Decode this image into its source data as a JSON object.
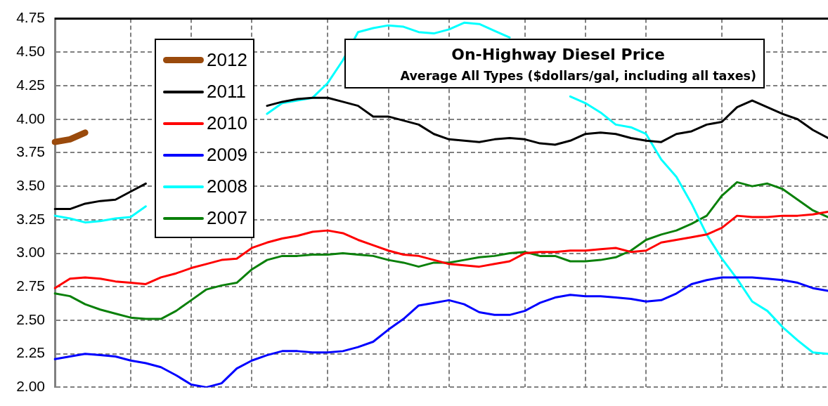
{
  "chart_data": {
    "type": "line",
    "title": "On-Highway Diesel Price",
    "subtitle": "Average All Types ($dollars/gal, including all taxes)",
    "categories": [
      null,
      null,
      null,
      null,
      null,
      null,
      null,
      null,
      null,
      null,
      null,
      null,
      null,
      null,
      null,
      null,
      null,
      null,
      null,
      null,
      null,
      null,
      null,
      null,
      null,
      null,
      null,
      null,
      null,
      null,
      null,
      null,
      null,
      null,
      null,
      null,
      null,
      null,
      null,
      null,
      null,
      null,
      null,
      null,
      null,
      null,
      null,
      null,
      null,
      null,
      null,
      null
    ],
    "series": [
      {
        "name": "2012",
        "color": "#9a4a0c",
        "values": [
          3.83,
          3.85,
          3.9,
          null,
          null,
          null,
          null,
          null,
          null,
          null,
          null,
          null,
          null,
          null,
          null,
          null,
          null,
          null,
          null,
          null,
          null,
          null,
          null,
          null,
          null,
          null,
          null,
          null,
          null,
          null,
          null,
          null,
          null,
          null,
          null,
          null,
          null,
          null,
          null,
          null,
          null,
          null,
          null,
          null,
          null,
          null,
          null,
          null,
          null,
          null,
          null,
          null
        ]
      },
      {
        "name": "2011",
        "color": "#000000",
        "values": [
          3.33,
          3.33,
          3.37,
          3.39,
          3.4,
          3.46,
          3.52,
          null,
          null,
          null,
          null,
          null,
          null,
          null,
          4.1,
          4.13,
          4.15,
          4.16,
          4.16,
          4.13,
          4.1,
          4.02,
          4.02,
          3.99,
          3.96,
          3.89,
          3.85,
          3.84,
          3.83,
          3.85,
          3.86,
          3.85,
          3.82,
          3.81,
          3.84,
          3.89,
          3.9,
          3.89,
          3.86,
          3.84,
          3.83,
          3.89,
          3.91,
          3.96,
          3.98,
          4.09,
          4.14,
          4.09,
          4.04,
          4.0,
          3.92,
          3.86
        ]
      },
      {
        "name": "2010",
        "color": "#ff0000",
        "values": [
          2.74,
          2.81,
          2.82,
          2.81,
          2.79,
          2.78,
          2.77,
          2.82,
          2.85,
          2.89,
          2.92,
          2.95,
          2.96,
          3.04,
          3.08,
          3.11,
          3.13,
          3.16,
          3.17,
          3.15,
          3.1,
          3.06,
          3.02,
          2.99,
          2.98,
          2.95,
          2.92,
          2.91,
          2.9,
          2.92,
          2.94,
          3.0,
          3.01,
          3.01,
          3.02,
          3.02,
          3.03,
          3.04,
          3.01,
          3.02,
          3.08,
          3.1,
          3.12,
          3.14,
          3.19,
          3.28,
          3.27,
          3.27,
          3.28,
          3.28,
          3.29,
          3.31
        ]
      },
      {
        "name": "2009",
        "color": "#0000ff",
        "values": [
          2.21,
          2.23,
          2.25,
          2.24,
          2.23,
          2.2,
          2.18,
          2.15,
          2.09,
          2.02,
          2.0,
          2.03,
          2.14,
          2.2,
          2.24,
          2.27,
          2.27,
          2.26,
          2.26,
          2.27,
          2.3,
          2.34,
          2.43,
          2.51,
          2.61,
          2.63,
          2.65,
          2.62,
          2.56,
          2.54,
          2.54,
          2.57,
          2.63,
          2.67,
          2.69,
          2.68,
          2.68,
          2.67,
          2.66,
          2.64,
          2.65,
          2.7,
          2.77,
          2.8,
          2.82,
          2.82,
          2.82,
          2.81,
          2.8,
          2.78,
          2.74,
          2.72
        ]
      },
      {
        "name": "2008",
        "color": "#00ffff",
        "values": [
          3.28,
          3.26,
          3.23,
          3.24,
          3.26,
          3.27,
          3.35,
          null,
          null,
          null,
          null,
          null,
          null,
          null,
          4.04,
          4.12,
          4.14,
          4.16,
          4.27,
          4.44,
          4.65,
          4.68,
          4.7,
          4.69,
          4.65,
          4.64,
          4.67,
          4.72,
          4.71,
          4.66,
          4.61,
          null,
          null,
          null,
          4.17,
          4.12,
          4.05,
          3.96,
          3.94,
          3.89,
          3.7,
          3.57,
          3.37,
          3.14,
          2.96,
          2.81,
          2.64,
          2.57,
          2.45,
          2.35,
          2.26,
          2.25
        ]
      },
      {
        "name": "2007",
        "color": "#0a800a",
        "values": [
          2.7,
          2.68,
          2.62,
          2.58,
          2.55,
          2.52,
          2.51,
          2.51,
          2.57,
          2.65,
          2.73,
          2.76,
          2.78,
          2.88,
          2.95,
          2.98,
          2.98,
          2.99,
          2.99,
          3.0,
          2.99,
          2.98,
          2.95,
          2.93,
          2.9,
          2.93,
          2.93,
          2.95,
          2.97,
          2.98,
          3.0,
          3.01,
          2.98,
          2.98,
          2.94,
          2.94,
          2.95,
          2.97,
          3.02,
          3.1,
          3.14,
          3.17,
          3.22,
          3.28,
          3.43,
          3.53,
          3.5,
          3.52,
          3.48,
          3.4,
          3.32,
          3.27
        ]
      }
    ],
    "ylim": [
      2.0,
      4.75
    ],
    "yticks": [
      {
        "value": 2.0,
        "label": "2.00"
      },
      {
        "value": 2.25,
        "label": "2.25"
      },
      {
        "value": 2.5,
        "label": "2.50"
      },
      {
        "value": 2.75,
        "label": "2.75"
      },
      {
        "value": 3.0,
        "label": "3.00"
      },
      {
        "value": 3.25,
        "label": "3.25"
      },
      {
        "value": 3.5,
        "label": "3.50"
      },
      {
        "value": 3.75,
        "label": "3.75"
      },
      {
        "value": 4.0,
        "label": "4.00"
      },
      {
        "value": 4.25,
        "label": "4.25"
      },
      {
        "value": 4.5,
        "label": "4.50"
      },
      {
        "value": 4.75,
        "label": "4.75"
      }
    ],
    "grid": true,
    "legend": "top left",
    "tick_labels": "y"
  }
}
